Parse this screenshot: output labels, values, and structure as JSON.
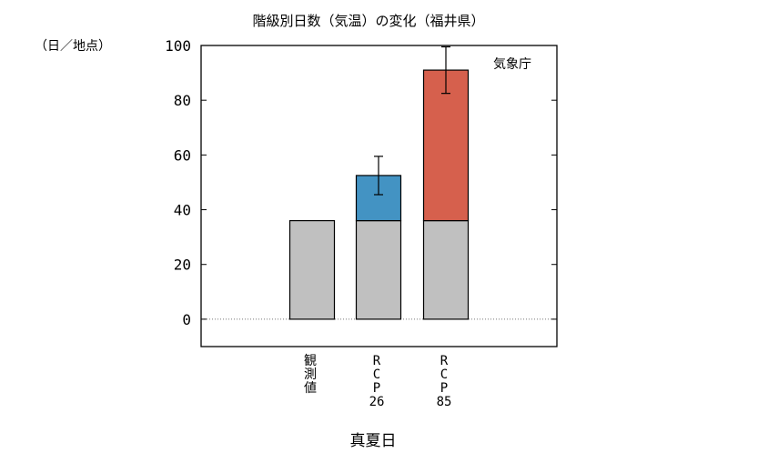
{
  "chart_data": {
    "type": "bar",
    "title": "階級別日数（気温）の変化（福井県）",
    "ylabel": "（日／地点）",
    "xlabel": "真夏日",
    "source_label": "気象庁",
    "ylim": [
      -10,
      100
    ],
    "yticks": [
      "100",
      "80",
      "60",
      "40",
      "20",
      "0"
    ],
    "categories": [
      {
        "label": [
          "観",
          "測",
          "値"
        ]
      },
      {
        "label": [
          "R",
          "C",
          "P",
          "26"
        ]
      },
      {
        "label": [
          "R",
          "C",
          "P",
          "85"
        ]
      }
    ],
    "series": [
      {
        "values": [
          36,
          36,
          36
        ],
        "color": "#c0c0c0"
      },
      {
        "values": [
          0,
          16.5,
          55
        ],
        "colors": [
          "#c0c0c0",
          "#4393c3",
          "#d6604d"
        ]
      }
    ],
    "totals": [
      36,
      52.5,
      91
    ],
    "error_bars": [
      null,
      [
        45.5,
        59.5
      ],
      [
        82.5,
        99.5
      ]
    ],
    "grid": false,
    "baseline": "dotted line at 0"
  }
}
